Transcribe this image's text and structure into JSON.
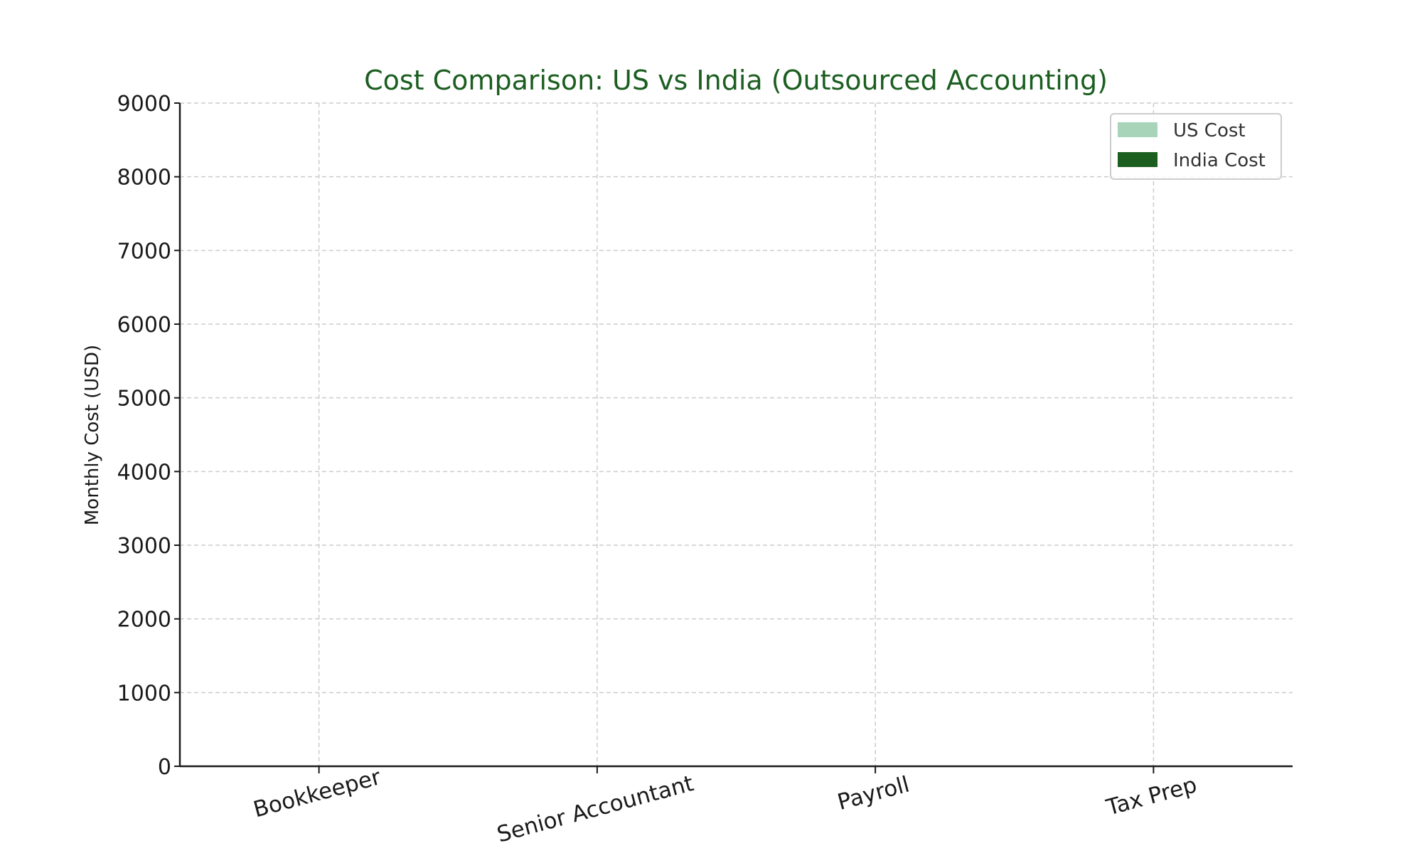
{
  "chart_data": {
    "type": "bar",
    "title": "Cost Comparison: US vs India (Outsourced Accounting)",
    "xlabel": "",
    "ylabel": "Monthly Cost (USD)",
    "categories": [
      "Bookkeeper",
      "Senior Accountant",
      "Payroll",
      "Tax Prep"
    ],
    "ylim": [
      0,
      9000
    ],
    "yticks": [
      "0",
      "1000",
      "2000",
      "3000",
      "4000",
      "5000",
      "6000",
      "7000",
      "8000",
      "9000"
    ],
    "series": [
      {
        "name": "US Cost",
        "color": "#a8d5ba",
        "values": [
          null,
          null,
          null,
          null
        ]
      },
      {
        "name": "India Cost",
        "color": "#1b5e20",
        "values": [
          null,
          null,
          null,
          null
        ]
      }
    ],
    "grid": true,
    "grid_style": "dashed",
    "legend_position": "top-right",
    "title_color": "#1b5e20"
  }
}
